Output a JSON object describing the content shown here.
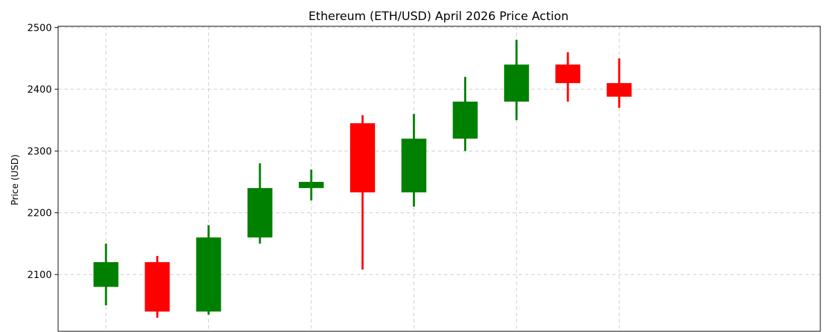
{
  "chart_data": {
    "type": "candlestick",
    "title": "Ethereum (ETH/USD) April 2026 Price Action",
    "xlabel": "",
    "ylabel": "Price (USD)",
    "ylim": [
      2008,
      2502
    ],
    "yticks": [
      2100,
      2200,
      2300,
      2400,
      2500
    ],
    "grid": true,
    "up_color": "#008000",
    "down_color": "#ff0000",
    "candles": [
      {
        "open": 2080,
        "high": 2150,
        "low": 2050,
        "close": 2120
      },
      {
        "open": 2120,
        "high": 2130,
        "low": 2030,
        "close": 2040
      },
      {
        "open": 2040,
        "high": 2180,
        "low": 2035,
        "close": 2160
      },
      {
        "open": 2160,
        "high": 2280,
        "low": 2150,
        "close": 2240
      },
      {
        "open": 2240,
        "high": 2270,
        "low": 2220,
        "close": 2250
      },
      {
        "open": 2345,
        "high": 2358,
        "low": 2108,
        "close": 2233
      },
      {
        "open": 2233,
        "high": 2360,
        "low": 2210,
        "close": 2320
      },
      {
        "open": 2320,
        "high": 2420,
        "low": 2300,
        "close": 2380
      },
      {
        "open": 2380,
        "high": 2480,
        "low": 2350,
        "close": 2440
      },
      {
        "open": 2440,
        "high": 2460,
        "low": 2380,
        "close": 2410
      },
      {
        "open": 2410,
        "high": 2450,
        "low": 2370,
        "close": 2388
      }
    ]
  }
}
